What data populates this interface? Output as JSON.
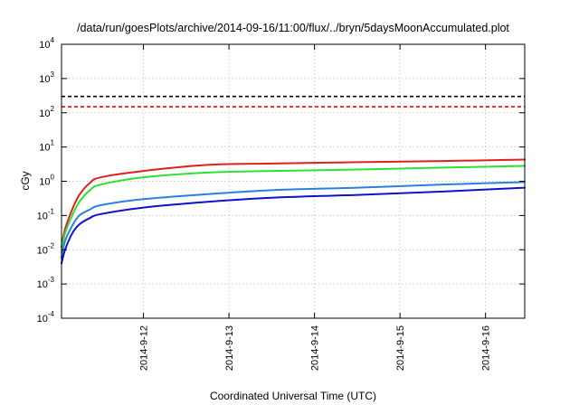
{
  "chart_data": {
    "type": "line",
    "title": "/data/run/goesPlots/archive/2014-09-16/11:00/flux/../bryn/5daysMoonAccumulated.plot",
    "xlabel": "Coordinated Universal Time (UTC)",
    "ylabel": "cGy",
    "y_scale": "log",
    "ylim": [
      0.0001,
      10000
    ],
    "xlim": [
      "2014-09-11T01:00",
      "2014-09-16T11:00"
    ],
    "y_ticks": [
      {
        "base": "10",
        "exp": "-4",
        "value": 0.0001
      },
      {
        "base": "10",
        "exp": "-3",
        "value": 0.001
      },
      {
        "base": "10",
        "exp": "-2",
        "value": 0.01
      },
      {
        "base": "10",
        "exp": "-1",
        "value": 0.1
      },
      {
        "base": "10",
        "exp": "0",
        "value": 1
      },
      {
        "base": "10",
        "exp": "1",
        "value": 10
      },
      {
        "base": "10",
        "exp": "2",
        "value": 100
      },
      {
        "base": "10",
        "exp": "3",
        "value": 1000
      },
      {
        "base": "10",
        "exp": "4",
        "value": 10000
      }
    ],
    "x_ticks": [
      {
        "label": "2014-9-12",
        "value": "2014-09-12T00:00"
      },
      {
        "label": "2014-9-13",
        "value": "2014-09-13T00:00"
      },
      {
        "label": "2014-9-14",
        "value": "2014-09-14T00:00"
      },
      {
        "label": "2014-9-15",
        "value": "2014-09-15T00:00"
      },
      {
        "label": "2014-9-16",
        "value": "2014-09-16T00:00"
      }
    ],
    "grid": true,
    "thresholds": [
      {
        "value": 300,
        "color": "#000000",
        "style": "dashed"
      },
      {
        "value": 150,
        "color": "#ff0000",
        "style": "dashed"
      }
    ],
    "series": [
      {
        "color": "#e0201c",
        "x": [
          "2014-09-11T01:00",
          "2014-09-11T02:00",
          "2014-09-11T04:00",
          "2014-09-11T06:00",
          "2014-09-11T09:00",
          "2014-09-11T12:00",
          "2014-09-12T00:00",
          "2014-09-12T18:00",
          "2014-09-13T12:00",
          "2014-09-14T12:00",
          "2014-09-15T12:00",
          "2014-09-16T11:00"
        ],
        "y": [
          0.012,
          0.04,
          0.15,
          0.4,
          0.9,
          1.3,
          2.0,
          3.0,
          3.3,
          3.6,
          3.9,
          4.3
        ]
      },
      {
        "color": "#30e030",
        "x": [
          "2014-09-11T01:00",
          "2014-09-11T02:00",
          "2014-09-11T04:00",
          "2014-09-11T06:00",
          "2014-09-11T09:00",
          "2014-09-11T12:00",
          "2014-09-12T00:00",
          "2014-09-12T18:00",
          "2014-09-13T12:00",
          "2014-09-14T12:00",
          "2014-09-15T12:00",
          "2014-09-16T11:00"
        ],
        "y": [
          0.009,
          0.03,
          0.1,
          0.25,
          0.55,
          0.8,
          1.3,
          1.8,
          2.0,
          2.2,
          2.5,
          2.8
        ]
      },
      {
        "color": "#2a80e0",
        "x": [
          "2014-09-11T01:00",
          "2014-09-11T02:00",
          "2014-09-11T04:00",
          "2014-09-11T06:00",
          "2014-09-11T09:00",
          "2014-09-11T12:00",
          "2014-09-12T00:00",
          "2014-09-12T18:00",
          "2014-09-13T12:00",
          "2014-09-14T12:00",
          "2014-09-15T12:00",
          "2014-09-16T11:00"
        ],
        "y": [
          0.006,
          0.018,
          0.05,
          0.1,
          0.15,
          0.2,
          0.3,
          0.42,
          0.55,
          0.65,
          0.8,
          0.95
        ]
      },
      {
        "color": "#1010d0",
        "x": [
          "2014-09-11T01:00",
          "2014-09-11T02:00",
          "2014-09-11T04:00",
          "2014-09-11T06:00",
          "2014-09-11T09:00",
          "2014-09-11T12:00",
          "2014-09-12T00:00",
          "2014-09-12T18:00",
          "2014-09-13T12:00",
          "2014-09-14T12:00",
          "2014-09-15T12:00",
          "2014-09-16T11:00"
        ],
        "y": [
          0.004,
          0.01,
          0.03,
          0.055,
          0.085,
          0.11,
          0.17,
          0.25,
          0.33,
          0.4,
          0.5,
          0.65
        ]
      }
    ]
  }
}
